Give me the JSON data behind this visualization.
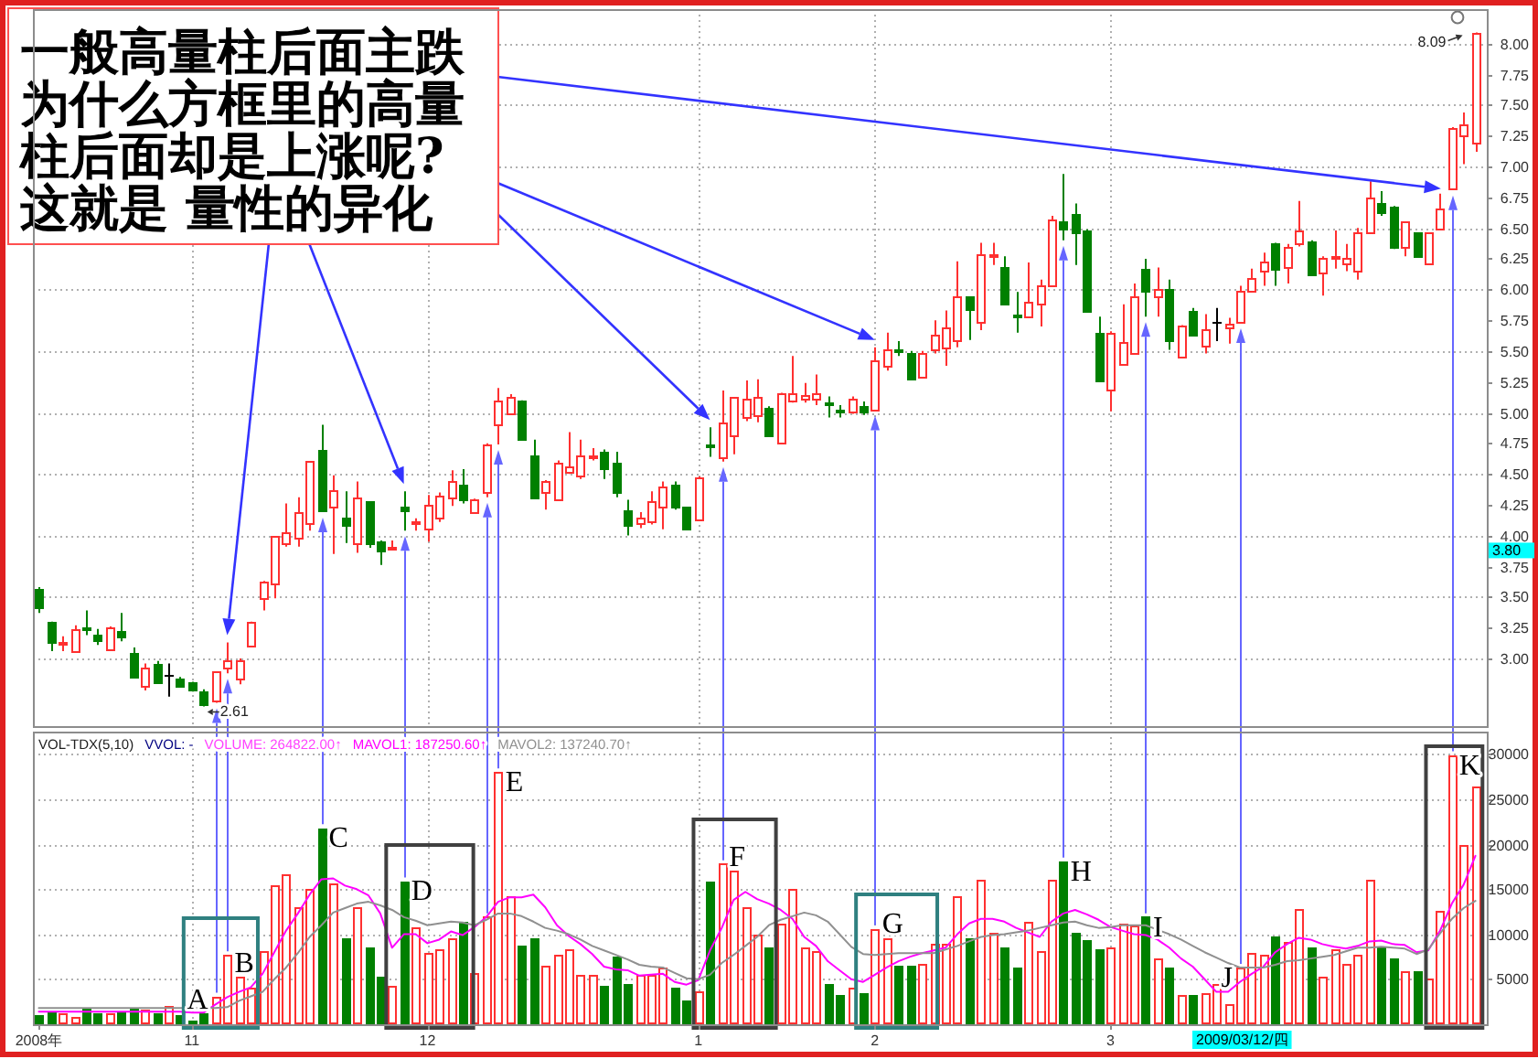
{
  "chart_data": [
    {
      "type": "candlestick",
      "categories": [
        null,
        null,
        null,
        null,
        null,
        null,
        null,
        null,
        null,
        null,
        null,
        null,
        null,
        null,
        null,
        null,
        null,
        null,
        null,
        null,
        null,
        null,
        null,
        null,
        null,
        null,
        null,
        null,
        null,
        null,
        null,
        null,
        null,
        null,
        null,
        null,
        null,
        null,
        null,
        null,
        null,
        null,
        null,
        null,
        null,
        null,
        null,
        null,
        null,
        null,
        null,
        null,
        null,
        null,
        null,
        null,
        null,
        null,
        null,
        null,
        null,
        null,
        null,
        null,
        null,
        null,
        null,
        null,
        null,
        null,
        null,
        null,
        null,
        null,
        null,
        null,
        null,
        null,
        null,
        null,
        null,
        null,
        null,
        null,
        null,
        null,
        null,
        null,
        null,
        null,
        null,
        null,
        null,
        null,
        null,
        null,
        null,
        null,
        null,
        null,
        null,
        null,
        null,
        null,
        null,
        null,
        null,
        null,
        null,
        null,
        null,
        null,
        null,
        null,
        null,
        null,
        null,
        null,
        null,
        null,
        null,
        null,
        null
      ],
      "ohlc": [
        [
          3.56,
          3.58,
          3.37,
          3.41
        ],
        [
          3.3,
          3.3,
          3.06,
          3.13
        ],
        [
          3.13,
          3.18,
          3.06,
          3.14
        ],
        [
          3.06,
          3.27,
          3.06,
          3.24
        ],
        [
          3.26,
          3.39,
          3.19,
          3.25
        ],
        [
          3.2,
          3.24,
          3.11,
          3.15
        ],
        [
          3.08,
          3.26,
          3.06,
          3.25
        ],
        [
          3.23,
          3.37,
          3.14,
          3.18
        ],
        [
          3.04,
          3.09,
          2.84,
          2.85
        ],
        [
          2.78,
          2.96,
          2.74,
          2.93
        ],
        [
          2.96,
          2.98,
          2.8,
          2.81
        ],
        [
          2.86,
          2.96,
          2.69,
          2.86
        ],
        [
          2.84,
          2.85,
          2.77,
          2.78
        ],
        [
          2.8,
          2.81,
          2.73,
          2.75
        ],
        [
          2.74,
          2.75,
          2.61,
          2.63
        ],
        [
          2.66,
          2.89,
          2.64,
          2.89
        ],
        [
          2.92,
          3.13,
          2.88,
          2.99
        ],
        [
          2.84,
          3.0,
          2.79,
          2.99
        ],
        [
          3.11,
          3.3,
          3.1,
          3.3
        ],
        [
          3.49,
          3.63,
          3.39,
          3.62
        ],
        [
          3.61,
          3.99,
          3.49,
          3.99
        ],
        [
          3.94,
          4.26,
          3.91,
          4.03
        ],
        [
          3.98,
          4.31,
          3.91,
          4.19
        ],
        [
          4.1,
          4.6,
          4.04,
          4.6
        ],
        [
          4.7,
          4.9,
          4.19,
          4.2
        ],
        [
          4.23,
          4.49,
          3.85,
          4.37
        ],
        [
          4.15,
          4.36,
          3.94,
          4.09
        ],
        [
          3.94,
          4.44,
          3.86,
          4.31
        ],
        [
          4.28,
          4.28,
          3.9,
          3.93
        ],
        [
          3.95,
          3.96,
          3.76,
          3.88
        ],
        [
          3.9,
          3.96,
          3.89,
          3.91
        ],
        [
          4.24,
          4.36,
          4.04,
          4.2
        ],
        [
          4.1,
          4.14,
          4.04,
          4.11
        ],
        [
          4.05,
          4.33,
          3.95,
          4.25
        ],
        [
          4.14,
          4.35,
          4.11,
          4.32
        ],
        [
          4.31,
          4.53,
          4.24,
          4.44
        ],
        [
          4.41,
          4.54,
          4.26,
          4.29
        ],
        [
          4.19,
          4.3,
          4.18,
          4.3
        ],
        [
          4.36,
          4.75,
          4.31,
          4.74
        ],
        [
          4.91,
          5.2,
          4.74,
          5.09
        ],
        [
          4.99,
          5.15,
          4.98,
          5.13
        ],
        [
          5.1,
          5.1,
          4.78,
          4.79
        ],
        [
          4.65,
          4.78,
          4.3,
          4.31
        ],
        [
          4.36,
          4.45,
          4.21,
          4.44
        ],
        [
          4.3,
          4.61,
          4.28,
          4.59
        ],
        [
          4.51,
          4.84,
          4.5,
          4.56
        ],
        [
          4.49,
          4.78,
          4.46,
          4.65
        ],
        [
          4.64,
          4.71,
          4.61,
          4.65
        ],
        [
          4.68,
          4.7,
          4.46,
          4.54
        ],
        [
          4.59,
          4.68,
          4.31,
          4.36
        ],
        [
          4.2,
          4.29,
          4.0,
          4.09
        ],
        [
          4.1,
          4.19,
          4.06,
          4.15
        ],
        [
          4.11,
          4.36,
          4.09,
          4.28
        ],
        [
          4.24,
          4.44,
          4.05,
          4.4
        ],
        [
          4.42,
          4.44,
          4.21,
          4.24
        ],
        [
          4.23,
          4.23,
          4.05,
          4.06
        ],
        [
          4.13,
          4.48,
          4.12,
          4.48
        ],
        [
          4.74,
          4.88,
          4.64,
          4.72
        ],
        [
          4.63,
          5.18,
          4.6,
          4.92
        ],
        [
          4.81,
          5.12,
          4.66,
          5.12
        ],
        [
          4.97,
          5.26,
          4.93,
          5.11
        ],
        [
          4.98,
          5.27,
          4.92,
          5.13
        ],
        [
          5.04,
          5.05,
          4.8,
          4.81
        ],
        [
          4.76,
          5.16,
          4.74,
          5.16
        ],
        [
          5.09,
          5.46,
          5.08,
          5.15
        ],
        [
          5.11,
          5.24,
          5.08,
          5.14
        ],
        [
          5.11,
          5.31,
          5.06,
          5.16
        ],
        [
          5.08,
          5.13,
          4.96,
          5.07
        ],
        [
          5.02,
          5.06,
          4.96,
          5.01
        ],
        [
          5.01,
          5.13,
          4.99,
          5.11
        ],
        [
          5.06,
          5.09,
          4.98,
          5.01
        ],
        [
          5.03,
          5.53,
          5.02,
          5.42
        ],
        [
          5.38,
          5.65,
          5.34,
          5.52
        ],
        [
          5.52,
          5.58,
          5.46,
          5.51
        ],
        [
          5.49,
          5.5,
          5.26,
          5.27
        ],
        [
          5.29,
          5.5,
          5.28,
          5.49
        ],
        [
          5.51,
          5.75,
          5.48,
          5.63
        ],
        [
          5.53,
          5.83,
          5.38,
          5.69
        ],
        [
          5.59,
          6.23,
          5.53,
          5.94
        ],
        [
          5.94,
          5.94,
          5.59,
          5.84
        ],
        [
          5.73,
          6.38,
          5.67,
          6.29
        ],
        [
          6.27,
          6.38,
          6.2,
          6.28
        ],
        [
          6.19,
          6.27,
          5.87,
          5.88
        ],
        [
          5.8,
          5.98,
          5.65,
          5.79
        ],
        [
          5.78,
          6.22,
          5.77,
          5.9
        ],
        [
          5.88,
          6.08,
          5.7,
          6.04
        ],
        [
          6.03,
          6.6,
          6.02,
          6.57
        ],
        [
          6.56,
          6.94,
          6.4,
          6.5
        ],
        [
          6.61,
          6.7,
          6.2,
          6.47
        ],
        [
          6.48,
          6.49,
          5.82,
          5.83
        ],
        [
          5.65,
          5.78,
          5.25,
          5.26
        ],
        [
          5.19,
          5.66,
          5.01,
          5.65
        ],
        [
          5.39,
          5.88,
          5.38,
          5.57
        ],
        [
          5.49,
          6.05,
          5.48,
          5.95
        ],
        [
          6.17,
          6.25,
          5.78,
          5.99
        ],
        [
          5.94,
          6.18,
          5.78,
          6.0
        ],
        [
          6.0,
          6.08,
          5.51,
          5.59
        ],
        [
          5.46,
          5.71,
          5.45,
          5.7
        ],
        [
          5.82,
          5.85,
          5.63,
          5.64
        ],
        [
          5.54,
          5.8,
          5.48,
          5.68
        ],
        [
          5.73,
          5.85,
          5.58,
          5.73
        ],
        [
          5.69,
          5.77,
          5.56,
          5.72
        ],
        [
          5.74,
          6.03,
          5.73,
          5.99
        ],
        [
          5.99,
          6.17,
          5.98,
          6.09
        ],
        [
          6.15,
          6.3,
          6.03,
          6.23
        ],
        [
          6.37,
          6.38,
          6.03,
          6.17
        ],
        [
          6.19,
          6.37,
          6.05,
          6.35
        ],
        [
          6.38,
          6.72,
          6.35,
          6.48
        ],
        [
          6.39,
          6.4,
          6.12,
          6.13
        ],
        [
          6.14,
          6.27,
          5.95,
          6.25
        ],
        [
          6.25,
          6.48,
          6.17,
          6.27
        ],
        [
          6.22,
          6.37,
          6.15,
          6.26
        ],
        [
          6.15,
          6.5,
          6.08,
          6.47
        ],
        [
          6.46,
          6.88,
          6.45,
          6.75
        ],
        [
          6.71,
          6.8,
          6.6,
          6.63
        ],
        [
          6.67,
          6.68,
          6.33,
          6.35
        ],
        [
          6.35,
          6.55,
          6.27,
          6.55
        ],
        [
          6.46,
          6.46,
          6.27,
          6.27
        ],
        [
          6.22,
          6.46,
          6.2,
          6.46
        ],
        [
          6.5,
          6.78,
          6.48,
          6.66
        ],
        [
          6.82,
          7.32,
          6.81,
          7.32
        ],
        [
          7.26,
          7.44,
          7.02,
          7.35
        ],
        [
          7.19,
          8.09,
          7.12,
          8.09
        ]
      ],
      "colors": [
        "#008000",
        "#008000",
        "#ff3030",
        "#ff3030",
        "#008000",
        "#008000",
        "#ff3030",
        "#008000",
        "#008000",
        "#ff3030",
        "#008000",
        "#000000",
        "#008000",
        "#008000",
        "#008000",
        "#ff3030",
        "#ff3030",
        "#ff3030",
        "#ff3030",
        "#ff3030",
        "#ff3030",
        "#ff3030",
        "#ff3030",
        "#ff3030",
        "#008000",
        "#ff3030",
        "#008000",
        "#ff3030",
        "#008000",
        "#008000",
        "#ff3030",
        "#008000",
        "#ff3030",
        "#ff3030",
        "#ff3030",
        "#ff3030",
        "#008000",
        "#ff3030",
        "#ff3030",
        "#ff3030",
        "#ff3030",
        "#008000",
        "#008000",
        "#ff3030",
        "#ff3030",
        "#ff3030",
        "#ff3030",
        "#ff3030",
        "#008000",
        "#008000",
        "#008000",
        "#ff3030",
        "#ff3030",
        "#ff3030",
        "#008000",
        "#008000",
        "#ff3030",
        "#008000",
        "#ff3030",
        "#ff3030",
        "#ff3030",
        "#ff3030",
        "#008000",
        "#ff3030",
        "#ff3030",
        "#ff3030",
        "#ff3030",
        "#008000",
        "#008000",
        "#ff3030",
        "#008000",
        "#ff3030",
        "#ff3030",
        "#008000",
        "#008000",
        "#ff3030",
        "#ff3030",
        "#ff3030",
        "#ff3030",
        "#008000",
        "#ff3030",
        "#ff3030",
        "#008000",
        "#008000",
        "#ff3030",
        "#ff3030",
        "#ff3030",
        "#008000",
        "#008000",
        "#008000",
        "#008000",
        "#ff3030",
        "#ff3030",
        "#ff3030",
        "#008000",
        "#ff3030",
        "#008000",
        "#ff3030",
        "#008000",
        "#ff3030",
        "#000000",
        "#ff3030",
        "#ff3030",
        "#ff3030",
        "#ff3030",
        "#008000",
        "#ff3030",
        "#ff3030",
        "#008000",
        "#ff3030",
        "#ff3030",
        "#ff3030",
        "#ff3030",
        "#ff3030",
        "#008000",
        "#008000",
        "#ff3030",
        "#008000",
        "#ff3030",
        "#ff3030",
        "#ff3030",
        "#ff3030",
        "#ff3030"
      ],
      "ylim": [
        2.45,
        8.28
      ],
      "yticks": [
        {
          "value": 3,
          "label": "3.00"
        },
        {
          "value": 3.25,
          "label": "3.25"
        },
        {
          "value": 3.5,
          "label": "3.50"
        },
        {
          "value": 3.75,
          "label": "3.75"
        },
        {
          "value": 4,
          "label": "4.00"
        },
        {
          "value": 4.25,
          "label": "4.25"
        },
        {
          "value": 4.5,
          "label": "4.50"
        },
        {
          "value": 4.75,
          "label": "4.75"
        },
        {
          "value": 5,
          "label": "5.00"
        },
        {
          "value": 5.25,
          "label": "5.25"
        },
        {
          "value": 5.5,
          "label": "5.50"
        },
        {
          "value": 5.75,
          "label": "5.75"
        },
        {
          "value": 6,
          "label": "6.00"
        },
        {
          "value": 6.25,
          "label": "6.25"
        },
        {
          "value": 6.5,
          "label": "6.50"
        },
        {
          "value": 6.75,
          "label": "6.75"
        },
        {
          "value": 7,
          "label": "7.00"
        },
        {
          "value": 7.25,
          "label": "7.25"
        },
        {
          "value": 7.5,
          "label": "7.50"
        },
        {
          "value": 7.75,
          "label": "7.75"
        },
        {
          "value": 8,
          "label": "8.00"
        }
      ],
      "grid": true,
      "annotations": [
        "一般高量柱后面主跌为什么方框里的高量柱后面却是上涨呢?这就是 量性的异化",
        "8.09",
        "2.61",
        "3.80"
      ]
    },
    {
      "type": "bar",
      "categories": [
        "2008年",
        null,
        null,
        null,
        null,
        null,
        null,
        null,
        null,
        null,
        null,
        null,
        null,
        "11",
        null,
        null,
        null,
        null,
        null,
        null,
        null,
        null,
        null,
        null,
        null,
        null,
        null,
        null,
        null,
        null,
        null,
        null,
        null,
        "12",
        null,
        null,
        null,
        null,
        null,
        null,
        null,
        null,
        null,
        null,
        null,
        null,
        null,
        null,
        null,
        null,
        null,
        null,
        null,
        null,
        null,
        null,
        "1",
        null,
        null,
        null,
        null,
        null,
        null,
        null,
        null,
        null,
        null,
        null,
        null,
        null,
        null,
        "2",
        null,
        null,
        null,
        null,
        null,
        null,
        null,
        null,
        null,
        null,
        null,
        null,
        null,
        null,
        null,
        null,
        null,
        null,
        null,
        "3",
        null,
        null,
        null,
        null,
        null,
        null,
        null,
        null,
        null,
        null,
        null,
        null,
        null,
        null,
        null,
        null,
        null,
        null,
        null,
        null,
        null,
        null,
        null,
        null,
        null,
        null,
        null,
        null,
        null,
        null,
        null
      ],
      "series": [
        {
          "type": "bar",
          "values": [
            1000,
            1400,
            1200,
            900,
            1800,
            1200,
            1200,
            1400,
            1800,
            1600,
            1300,
            2000,
            1000,
            500,
            1200,
            3100,
            7700,
            5300,
            4100,
            8100,
            15500,
            16700,
            12900,
            15000,
            21800,
            15700,
            9600,
            13100,
            8500,
            5200,
            4300,
            15900,
            10800,
            7900,
            8300,
            9600,
            11400,
            5600,
            11900,
            28000,
            14200,
            8700,
            9600,
            6400,
            7700,
            8300,
            5400,
            5400,
            4300,
            7500,
            4500,
            5500,
            5400,
            6200,
            4000,
            2700,
            3600,
            15900,
            17800,
            17100,
            12900,
            10000,
            8500,
            11200,
            15000,
            8500,
            8200,
            4500,
            3200,
            4100,
            3500,
            10600,
            9600,
            6600,
            6400,
            6700,
            9000,
            8900,
            14200,
            9600,
            16100,
            10200,
            8500,
            6200,
            11400,
            8200,
            16100,
            18100,
            10200,
            9400,
            8300,
            8500,
            11200,
            11000,
            11900,
            7300,
            6300,
            3200,
            3200,
            3500,
            4500,
            2300,
            6300,
            8000,
            7700,
            9800,
            9200,
            12700,
            8600,
            5200,
            8300,
            6800,
            7800,
            16100,
            8600,
            7400,
            5800,
            5900,
            5000,
            12500,
            29900,
            19900,
            26500
          ],
          "colors": [
            "#008000",
            "#008000",
            "#ff3030",
            "#ff3030",
            "#008000",
            "#008000",
            "#ff3030",
            "#008000",
            "#008000",
            "#ff3030",
            "#008000",
            "#ff3030",
            "#008000",
            "#008000",
            "#008000",
            "#ff3030",
            "#ff3030",
            "#ff3030",
            "#ff3030",
            "#ff3030",
            "#ff3030",
            "#ff3030",
            "#ff3030",
            "#ff3030",
            "#008000",
            "#ff3030",
            "#008000",
            "#ff3030",
            "#008000",
            "#008000",
            "#ff3030",
            "#008000",
            "#ff3030",
            "#ff3030",
            "#ff3030",
            "#ff3030",
            "#008000",
            "#ff3030",
            "#ff3030",
            "#ff3030",
            "#ff3030",
            "#008000",
            "#008000",
            "#ff3030",
            "#ff3030",
            "#ff3030",
            "#ff3030",
            "#ff3030",
            "#008000",
            "#008000",
            "#008000",
            "#ff3030",
            "#ff3030",
            "#ff3030",
            "#008000",
            "#008000",
            "#ff3030",
            "#008000",
            "#ff3030",
            "#ff3030",
            "#ff3030",
            "#ff3030",
            "#008000",
            "#ff3030",
            "#ff3030",
            "#ff3030",
            "#ff3030",
            "#008000",
            "#008000",
            "#ff3030",
            "#008000",
            "#ff3030",
            "#ff3030",
            "#008000",
            "#008000",
            "#ff3030",
            "#ff3030",
            "#ff3030",
            "#ff3030",
            "#008000",
            "#ff3030",
            "#ff3030",
            "#008000",
            "#008000",
            "#ff3030",
            "#ff3030",
            "#ff3030",
            "#008000",
            "#008000",
            "#008000",
            "#008000",
            "#ff3030",
            "#ff3030",
            "#ff3030",
            "#008000",
            "#ff3030",
            "#008000",
            "#ff3030",
            "#008000",
            "#ff3030",
            "#ff3030",
            "#ff3030",
            "#ff3030",
            "#ff3030",
            "#ff3030",
            "#008000",
            "#ff3030",
            "#ff3030",
            "#008000",
            "#ff3030",
            "#ff3030",
            "#ff3030",
            "#ff3030",
            "#ff3030",
            "#008000",
            "#008000",
            "#ff3030",
            "#008000",
            "#ff3030",
            "#ff3030",
            "#ff3030",
            "#ff3030",
            "#ff3030"
          ],
          "value_labels": [
            null,
            null,
            null,
            null,
            null,
            null,
            null,
            null,
            null,
            null,
            null,
            null,
            null,
            null,
            null,
            "A",
            "B",
            null,
            null,
            null,
            null,
            null,
            null,
            null,
            "C",
            null,
            null,
            null,
            null,
            null,
            null,
            "D",
            null,
            null,
            null,
            null,
            null,
            null,
            null,
            "E",
            null,
            null,
            null,
            null,
            null,
            null,
            null,
            null,
            null,
            null,
            null,
            null,
            null,
            null,
            null,
            null,
            null,
            null,
            "F",
            null,
            null,
            null,
            null,
            null,
            null,
            null,
            null,
            null,
            null,
            null,
            null,
            "G",
            null,
            null,
            null,
            null,
            null,
            null,
            null,
            null,
            null,
            null,
            null,
            null,
            null,
            null,
            null,
            "H",
            null,
            null,
            null,
            null,
            null,
            null,
            "I",
            null,
            null,
            null,
            null,
            null,
            null,
            null,
            "J",
            null,
            null,
            null,
            null,
            null,
            null,
            null,
            null,
            null,
            null,
            null,
            null,
            null,
            null,
            null,
            null,
            null,
            "K",
            null,
            null
          ]
        },
        {
          "type": "line",
          "name": "MAVOL1: 187250.60↑",
          "color": "#ff00ff",
          "values": [
            1400,
            1400,
            1400,
            1400,
            1400,
            1400,
            1400,
            1400,
            1400,
            1400,
            1400,
            1400,
            1400,
            1300,
            1300,
            2200,
            3000,
            3600,
            4100,
            5600,
            8000,
            10400,
            12300,
            14400,
            16100,
            16200,
            15400,
            15000,
            14300,
            12300,
            8500,
            10000,
            10000,
            9000,
            9400,
            10300,
            9900,
            10800,
            11900,
            13600,
            14100,
            14100,
            14400,
            13000,
            11000,
            9800,
            8900,
            7800,
            6400,
            6100,
            6000,
            5400,
            5500,
            5600,
            4700,
            4400,
            4900,
            8200,
            10700,
            13800,
            14700,
            13900,
            13400,
            12700,
            11700,
            9700,
            8700,
            7000,
            6000,
            5000,
            4700,
            5500,
            6300,
            7000,
            7500,
            7900,
            8200,
            8500,
            10000,
            11200,
            11700,
            11700,
            11400,
            10700,
            10200,
            9700,
            11400,
            12300,
            12700,
            12200,
            11600,
            10800,
            10400,
            10000,
            9900,
            9400,
            8500,
            7300,
            6400,
            5000,
            3600,
            3600,
            4700,
            5600,
            6400,
            8000,
            8900,
            9600,
            9400,
            8900,
            8600,
            8400,
            8700,
            9200,
            9300,
            8900,
            8800,
            8000,
            8200,
            10400,
            13400,
            15500,
            18700
          ]
        },
        {
          "type": "line",
          "name": "MAVOL2: 137240.70↑",
          "color": "#909090",
          "values": [
            1800,
            1800,
            1800,
            1800,
            1800,
            1800,
            1800,
            1800,
            1800,
            1800,
            1800,
            1800,
            1800,
            1800,
            1800,
            1800,
            1900,
            2600,
            3100,
            3600,
            5000,
            6300,
            7900,
            9700,
            11000,
            12400,
            12900,
            13400,
            13600,
            13200,
            12700,
            11900,
            11500,
            11000,
            11200,
            11400,
            11300,
            11000,
            11600,
            12300,
            12300,
            12000,
            11400,
            10700,
            10400,
            10000,
            9400,
            8700,
            8200,
            7700,
            7200,
            6600,
            6400,
            6300,
            5700,
            5100,
            5000,
            5500,
            6800,
            7700,
            8700,
            9700,
            11000,
            11600,
            12000,
            12400,
            12100,
            11400,
            10000,
            8600,
            7800,
            7700,
            7800,
            7900,
            7900,
            7900,
            7900,
            8300,
            8700,
            9200,
            9700,
            9900,
            10000,
            10200,
            10400,
            10700,
            11000,
            11300,
            11400,
            11000,
            10700,
            10800,
            11000,
            11000,
            11000,
            10500,
            10000,
            9400,
            8700,
            8000,
            7400,
            6800,
            6300,
            6300,
            6300,
            6600,
            7000,
            7100,
            7300,
            7500,
            7700,
            8100,
            8500,
            8500,
            8600,
            8500,
            8400,
            7800,
            8300,
            10100,
            11700,
            12900,
            13700
          ]
        }
      ],
      "ylim": [
        0,
        32500
      ],
      "yticks": [
        5000,
        10000,
        15000,
        20000,
        25000,
        30000
      ],
      "grid": true,
      "legend": "top left",
      "annotations": [
        "VOL-TDX(5,10)",
        "VVOL: -",
        "VOLUME: 264822.00↑",
        "2009/03/12/四"
      ]
    }
  ]
}
